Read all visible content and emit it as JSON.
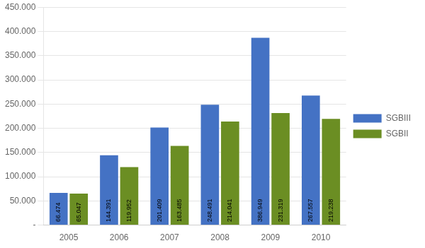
{
  "chart_data": {
    "type": "bar",
    "categories": [
      "2005",
      "2006",
      "2007",
      "2008",
      "2009",
      "2010"
    ],
    "series": [
      {
        "name": "SGBIII",
        "color": "#4472C4",
        "values": [
          66474,
          144391,
          201409,
          248491,
          386949,
          267557
        ],
        "value_labels": [
          "66.474",
          "144.391",
          "201.409",
          "248.491",
          "386.949",
          "267.557"
        ]
      },
      {
        "name": "SGBII",
        "color": "#6B8E23",
        "values": [
          65047,
          119952,
          163485,
          214041,
          231319,
          219238
        ],
        "value_labels": [
          "65.047",
          "119.952",
          "163.485",
          "214.041",
          "231.319",
          "219.238"
        ]
      }
    ],
    "ylim": [
      0,
      450000
    ],
    "yticks": [
      {
        "value": 0,
        "label": "-"
      },
      {
        "value": 50000,
        "label": "50.000"
      },
      {
        "value": 100000,
        "label": "100.000"
      },
      {
        "value": 150000,
        "label": "150.000"
      },
      {
        "value": 200000,
        "label": "200.000"
      },
      {
        "value": 250000,
        "label": "250.000"
      },
      {
        "value": 300000,
        "label": "300.000"
      },
      {
        "value": 350000,
        "label": "350.000"
      },
      {
        "value": 400000,
        "label": "400.000"
      },
      {
        "value": 450000,
        "label": "450.000"
      }
    ],
    "grid": true,
    "legend": "right",
    "data_labels": true
  }
}
